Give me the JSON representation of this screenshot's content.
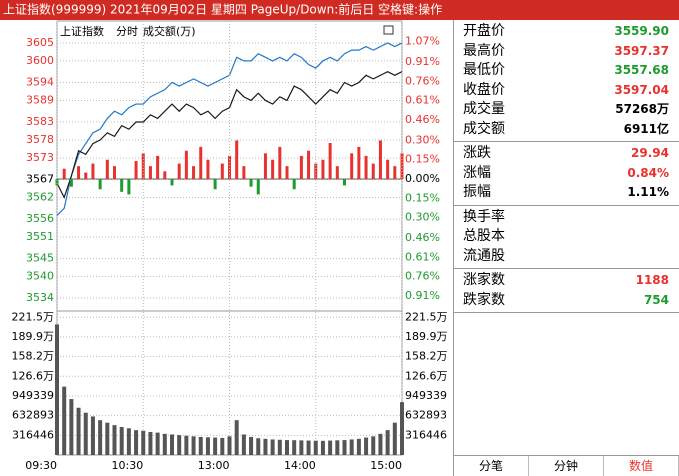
{
  "title_bar": "上证指数(999999)  2021年09月02日 星期四 PageUp/Down:前后日 空格键:操作",
  "chart_data": [
    {
      "type": "line",
      "labels": [
        "上证指数",
        "分时",
        "成交额(万)"
      ],
      "x": [
        0,
        5,
        10,
        15,
        20,
        25,
        30,
        35,
        40,
        45,
        50,
        55,
        60,
        65,
        70,
        75,
        80,
        85,
        90,
        95,
        100,
        105,
        110,
        115,
        120,
        125,
        130,
        135,
        140,
        145,
        150,
        155,
        160,
        165,
        170,
        175,
        180,
        185,
        190,
        195,
        200,
        205,
        210,
        215,
        220,
        225,
        230,
        235,
        240
      ],
      "xlim": [
        0,
        240
      ],
      "ylim": [
        3530.7,
        3608.6
      ],
      "yticks": [
        3605,
        3600,
        3594,
        3589,
        3583,
        3578,
        3573,
        3567,
        3562,
        3556,
        3551,
        3545,
        3540,
        3534
      ],
      "y2lim": [
        -1.02,
        1.16
      ],
      "y2ticks": [
        {
          "value": 1.07,
          "label": "1.07%"
        },
        {
          "value": 0.91,
          "label": "0.91%"
        },
        {
          "value": 0.76,
          "label": "0.76%"
        },
        {
          "value": 0.61,
          "label": "0.61%"
        },
        {
          "value": 0.46,
          "label": "0.46%"
        },
        {
          "value": 0.3,
          "label": "0.30%"
        },
        {
          "value": 0.15,
          "label": "0.15%"
        },
        {
          "value": 0,
          "label": "0.00%"
        },
        {
          "value": -0.15,
          "label": "0.15%"
        },
        {
          "value": -0.3,
          "label": "0.30%"
        },
        {
          "value": -0.46,
          "label": "0.46%"
        },
        {
          "value": -0.61,
          "label": "0.61%"
        },
        {
          "value": -0.76,
          "label": "0.76%"
        },
        {
          "value": -0.91,
          "label": "0.91%"
        }
      ],
      "up_color": "#e8322e",
      "down_color": "#1e9b2e",
      "flat_color": "#000000",
      "grid": true,
      "series": [
        {
          "color": "#1f78c8",
          "values": [
            3557,
            3559,
            3568,
            3574,
            3577,
            3580,
            3581,
            3584,
            3586,
            3585,
            3587,
            3588,
            3588,
            3590,
            3591,
            3592,
            3594,
            3593,
            3594,
            3595,
            3594,
            3593,
            3594,
            3595,
            3596,
            3601,
            3600,
            3600,
            3602,
            3601,
            3600,
            3601,
            3600,
            3602,
            3601,
            3599,
            3598,
            3600,
            3601,
            3600,
            3602,
            3603,
            3603,
            3604,
            3603,
            3604,
            3605,
            3604,
            3605
          ]
        },
        {
          "color": "#1a1a1a",
          "values": [
            3566,
            3562,
            3568,
            3575,
            3574,
            3577,
            3578,
            3580,
            3579,
            3582,
            3581,
            3583,
            3583,
            3585,
            3584,
            3586,
            3588,
            3586,
            3588,
            3587,
            3585,
            3586,
            3584,
            3586,
            3587,
            3592,
            3590,
            3589,
            3591,
            3589,
            3588,
            3590,
            3589,
            3593,
            3592,
            3590,
            3588,
            3590,
            3592,
            3591,
            3594,
            3593,
            3594,
            3596,
            3595,
            3596,
            3597,
            3596,
            3597
          ]
        },
        {
          "type": "bar",
          "axis": "y2",
          "values": [
            -0.05,
            0.08,
            -0.06,
            0.1,
            0.05,
            0.12,
            -0.08,
            0.15,
            0.1,
            -0.1,
            -0.12,
            0.14,
            0.2,
            0.1,
            0.18,
            0.06,
            -0.05,
            0.12,
            0.22,
            0.1,
            0.25,
            0.15,
            -0.08,
            0.12,
            0.18,
            0.3,
            0.1,
            -0.06,
            -0.12,
            0.2,
            0.15,
            0.25,
            0.1,
            -0.08,
            0.18,
            0.22,
            0.12,
            0.15,
            0.28,
            0.1,
            -0.05,
            0.2,
            0.25,
            0.18,
            0.12,
            0.3,
            0.15,
            0.1,
            0.2
          ]
        }
      ]
    },
    {
      "type": "bar",
      "color": "#555555",
      "x": [
        0,
        5,
        10,
        15,
        20,
        25,
        30,
        35,
        40,
        45,
        50,
        55,
        60,
        65,
        70,
        75,
        80,
        85,
        90,
        95,
        100,
        105,
        110,
        115,
        120,
        125,
        130,
        135,
        140,
        145,
        150,
        155,
        160,
        165,
        170,
        175,
        180,
        185,
        190,
        195,
        200,
        205,
        210,
        215,
        220,
        225,
        230,
        235,
        240
      ],
      "xlim": [
        0,
        240
      ],
      "ylim": [
        0,
        2300000
      ],
      "yticks": [
        {
          "value": 2215000,
          "label": "221.5万"
        },
        {
          "value": 1899000,
          "label": "189.9万"
        },
        {
          "value": 1582000,
          "label": "158.2万"
        },
        {
          "value": 1266000,
          "label": "126.6万"
        },
        949339,
        632893,
        316446
      ],
      "xticks": [
        {
          "value": 0,
          "label": "09:30"
        },
        {
          "value": 60,
          "label": "10:30"
        },
        {
          "value": 120,
          "label": "13:00"
        },
        {
          "value": 180,
          "label": "14:00"
        },
        {
          "value": 240,
          "label": "15:00"
        }
      ],
      "values": [
        2100000,
        1100000,
        900000,
        760000,
        680000,
        620000,
        560000,
        520000,
        480000,
        450000,
        430000,
        400000,
        390000,
        370000,
        360000,
        340000,
        330000,
        320000,
        310000,
        300000,
        290000,
        285000,
        280000,
        275000,
        300000,
        560000,
        330000,
        290000,
        270000,
        260000,
        250000,
        245000,
        240000,
        238000,
        235000,
        232000,
        230000,
        228000,
        232000,
        236000,
        240000,
        250000,
        260000,
        280000,
        300000,
        340000,
        400000,
        520000,
        850000
      ]
    }
  ],
  "panel": {
    "groups": [
      [
        {
          "label": "开盘价",
          "value": "3559.90",
          "color": "#1e9b2e"
        },
        {
          "label": "最高价",
          "value": "3597.37",
          "color": "#e8322e"
        },
        {
          "label": "最低价",
          "value": "3557.68",
          "color": "#1e9b2e"
        },
        {
          "label": "收盘价",
          "value": "3597.04",
          "color": "#e8322e"
        },
        {
          "label": "成交量",
          "value": "57268万",
          "color": "#000000"
        },
        {
          "label": "成交额",
          "value": "6911亿",
          "color": "#000000"
        }
      ],
      [
        {
          "label": "涨跌",
          "value": "29.94",
          "color": "#e8322e"
        },
        {
          "label": "涨幅",
          "value": "0.84%",
          "color": "#e8322e"
        },
        {
          "label": "振幅",
          "value": "1.11%",
          "color": "#000000"
        }
      ],
      [
        {
          "label": "换手率"
        },
        {
          "label": "总股本"
        },
        {
          "label": "流通股"
        }
      ],
      [
        {
          "label": "涨家数",
          "value": "1188",
          "color": "#e8322e"
        },
        {
          "label": "跌家数",
          "value": "754",
          "color": "#1e9b2e"
        }
      ]
    ]
  },
  "tabs": [
    {
      "label": "分笔"
    },
    {
      "label": "分钟"
    },
    {
      "label": "数值",
      "active": true
    }
  ]
}
